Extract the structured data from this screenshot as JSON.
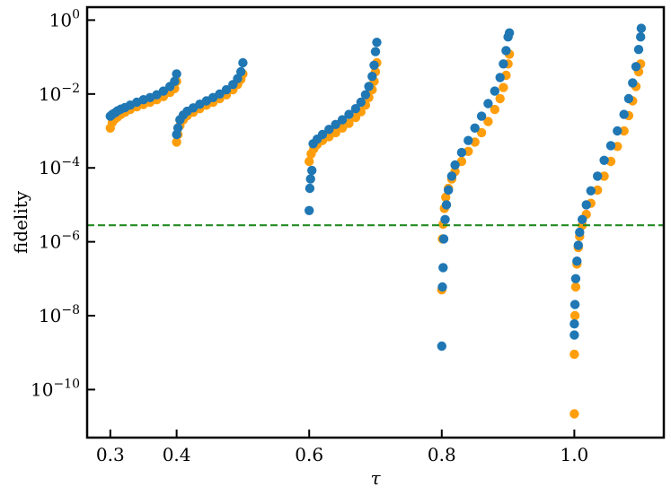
{
  "chart_data": {
    "type": "scatter",
    "title": "",
    "xlabel": "τ",
    "ylabel": "fidelity",
    "xlim": [
      0.265,
      1.135
    ],
    "ylim_log10": [
      -11.3,
      0.35
    ],
    "yscale": "log",
    "grid": false,
    "x_ticks": [
      0.3,
      0.4,
      0.6,
      0.8,
      1.0
    ],
    "x_tick_labels": [
      "0.3",
      "0.4",
      "0.6",
      "0.8",
      "1.0"
    ],
    "y_ticks_exp": [
      0,
      -2,
      -4,
      -6,
      -8,
      -10
    ],
    "y_tick_base": "10",
    "y_tick_exps": [
      "0",
      "−2",
      "−4",
      "−6",
      "−8",
      "−10"
    ],
    "threshold": {
      "y": 2.8e-06,
      "color": "#228b22",
      "style": "dashed"
    },
    "series": [
      {
        "color": "#ff9e0c",
        "points": [
          [
            0.3,
            0.0012
          ],
          [
            0.303,
            0.0017
          ],
          [
            0.307,
            0.0021
          ],
          [
            0.311,
            0.0024
          ],
          [
            0.316,
            0.0028
          ],
          [
            0.322,
            0.0032
          ],
          [
            0.33,
            0.0038
          ],
          [
            0.34,
            0.0045
          ],
          [
            0.35,
            0.0052
          ],
          [
            0.36,
            0.006
          ],
          [
            0.37,
            0.007
          ],
          [
            0.38,
            0.0085
          ],
          [
            0.39,
            0.011
          ],
          [
            0.397,
            0.014
          ],
          [
            0.4,
            0.022
          ],
          [
            0.4,
            0.0005
          ],
          [
            0.402,
            0.0008
          ],
          [
            0.405,
            0.0014
          ],
          [
            0.41,
            0.002
          ],
          [
            0.416,
            0.0026
          ],
          [
            0.425,
            0.0032
          ],
          [
            0.435,
            0.004
          ],
          [
            0.445,
            0.005
          ],
          [
            0.455,
            0.006
          ],
          [
            0.465,
            0.0075
          ],
          [
            0.475,
            0.0095
          ],
          [
            0.485,
            0.013
          ],
          [
            0.492,
            0.018
          ],
          [
            0.497,
            0.025
          ],
          [
            0.5,
            0.035
          ],
          [
            0.6,
            0.00015
          ],
          [
            0.603,
            0.00024
          ],
          [
            0.607,
            0.00033
          ],
          [
            0.612,
            0.00043
          ],
          [
            0.62,
            0.00055
          ],
          [
            0.63,
            0.0007
          ],
          [
            0.64,
            0.0009
          ],
          [
            0.65,
            0.0012
          ],
          [
            0.66,
            0.0016
          ],
          [
            0.67,
            0.0023
          ],
          [
            0.678,
            0.0033
          ],
          [
            0.685,
            0.005
          ],
          [
            0.69,
            0.008
          ],
          [
            0.695,
            0.013
          ],
          [
            0.698,
            0.022
          ],
          [
            0.7,
            0.04
          ],
          [
            0.702,
            0.07
          ],
          [
            0.8,
            5e-08
          ],
          [
            0.801,
            1.2e-06
          ],
          [
            0.802,
            3e-06
          ],
          [
            0.804,
            8e-06
          ],
          [
            0.806,
            1.6e-05
          ],
          [
            0.81,
            2.8e-05
          ],
          [
            0.815,
            5e-05
          ],
          [
            0.82,
            8e-05
          ],
          [
            0.83,
            0.00015
          ],
          [
            0.84,
            0.00028
          ],
          [
            0.85,
            0.0005
          ],
          [
            0.86,
            0.0009
          ],
          [
            0.87,
            0.0018
          ],
          [
            0.88,
            0.0038
          ],
          [
            0.888,
            0.0075
          ],
          [
            0.893,
            0.015
          ],
          [
            0.897,
            0.032
          ],
          [
            0.9,
            0.065
          ],
          [
            0.902,
            0.12
          ],
          [
            1.0,
            2.2e-11
          ],
          [
            1.0,
            9e-10
          ],
          [
            1.001,
            1e-08
          ],
          [
            1.002,
            6e-08
          ],
          [
            1.004,
            2.5e-07
          ],
          [
            1.006,
            7e-07
          ],
          [
            1.008,
            1.4e-06
          ],
          [
            1.012,
            2.8e-06
          ],
          [
            1.018,
            5.5e-06
          ],
          [
            1.025,
            1.1e-05
          ],
          [
            1.035,
            2.5e-05
          ],
          [
            1.045,
            6e-05
          ],
          [
            1.055,
            0.00015
          ],
          [
            1.065,
            0.00038
          ],
          [
            1.075,
            0.001
          ],
          [
            1.082,
            0.0026
          ],
          [
            1.088,
            0.0065
          ],
          [
            1.093,
            0.016
          ],
          [
            1.097,
            0.04
          ],
          [
            1.1,
            0.065
          ]
        ]
      },
      {
        "color": "#1f77b4",
        "points": [
          [
            0.3,
            0.0025
          ],
          [
            0.303,
            0.0028
          ],
          [
            0.307,
            0.0031
          ],
          [
            0.311,
            0.0035
          ],
          [
            0.316,
            0.0039
          ],
          [
            0.322,
            0.0043
          ],
          [
            0.33,
            0.005
          ],
          [
            0.34,
            0.006
          ],
          [
            0.35,
            0.007
          ],
          [
            0.36,
            0.008
          ],
          [
            0.37,
            0.0095
          ],
          [
            0.38,
            0.012
          ],
          [
            0.39,
            0.016
          ],
          [
            0.397,
            0.022
          ],
          [
            0.4,
            0.035
          ],
          [
            0.4,
            0.0008
          ],
          [
            0.402,
            0.0012
          ],
          [
            0.405,
            0.002
          ],
          [
            0.41,
            0.0027
          ],
          [
            0.416,
            0.0034
          ],
          [
            0.425,
            0.0042
          ],
          [
            0.435,
            0.0053
          ],
          [
            0.445,
            0.0065
          ],
          [
            0.455,
            0.008
          ],
          [
            0.465,
            0.01
          ],
          [
            0.475,
            0.013
          ],
          [
            0.485,
            0.018
          ],
          [
            0.492,
            0.026
          ],
          [
            0.497,
            0.04
          ],
          [
            0.5,
            0.07
          ],
          [
            0.6,
            7e-06
          ],
          [
            0.601,
            2.8e-05
          ],
          [
            0.602,
            5e-05
          ],
          [
            0.604,
            8.5e-05
          ],
          [
            0.606,
            0.00045
          ],
          [
            0.612,
            0.0006
          ],
          [
            0.62,
            0.0008
          ],
          [
            0.63,
            0.0011
          ],
          [
            0.64,
            0.0015
          ],
          [
            0.65,
            0.002
          ],
          [
            0.66,
            0.0028
          ],
          [
            0.67,
            0.004
          ],
          [
            0.678,
            0.006
          ],
          [
            0.685,
            0.0095
          ],
          [
            0.69,
            0.016
          ],
          [
            0.695,
            0.03
          ],
          [
            0.698,
            0.06
          ],
          [
            0.7,
            0.14
          ],
          [
            0.702,
            0.25
          ],
          [
            0.8,
            1.5e-09
          ],
          [
            0.801,
            6e-08
          ],
          [
            0.802,
            2e-07
          ],
          [
            0.803,
            1.2e-06
          ],
          [
            0.805,
            4e-06
          ],
          [
            0.807,
            1e-05
          ],
          [
            0.81,
            2.5e-05
          ],
          [
            0.815,
            6e-05
          ],
          [
            0.82,
            0.00012
          ],
          [
            0.83,
            0.00026
          ],
          [
            0.84,
            0.00055
          ],
          [
            0.85,
            0.0012
          ],
          [
            0.86,
            0.0025
          ],
          [
            0.87,
            0.0055
          ],
          [
            0.88,
            0.012
          ],
          [
            0.888,
            0.028
          ],
          [
            0.893,
            0.065
          ],
          [
            0.897,
            0.15
          ],
          [
            0.9,
            0.35
          ],
          [
            0.902,
            0.45
          ],
          [
            1.0,
            3e-09
          ],
          [
            1.0,
            6e-09
          ],
          [
            1.001,
            2e-08
          ],
          [
            1.002,
            1e-07
          ],
          [
            1.004,
            3e-07
          ],
          [
            1.006,
            8e-07
          ],
          [
            1.008,
            1.8e-06
          ],
          [
            1.012,
            4e-06
          ],
          [
            1.018,
            1e-05
          ],
          [
            1.025,
            2.4e-05
          ],
          [
            1.035,
            6e-05
          ],
          [
            1.045,
            0.00016
          ],
          [
            1.055,
            0.0004
          ],
          [
            1.065,
            0.001
          ],
          [
            1.075,
            0.0028
          ],
          [
            1.082,
            0.0075
          ],
          [
            1.088,
            0.02
          ],
          [
            1.093,
            0.055
          ],
          [
            1.097,
            0.16
          ],
          [
            1.1,
            0.35
          ],
          [
            1.101,
            0.6
          ]
        ]
      }
    ]
  }
}
